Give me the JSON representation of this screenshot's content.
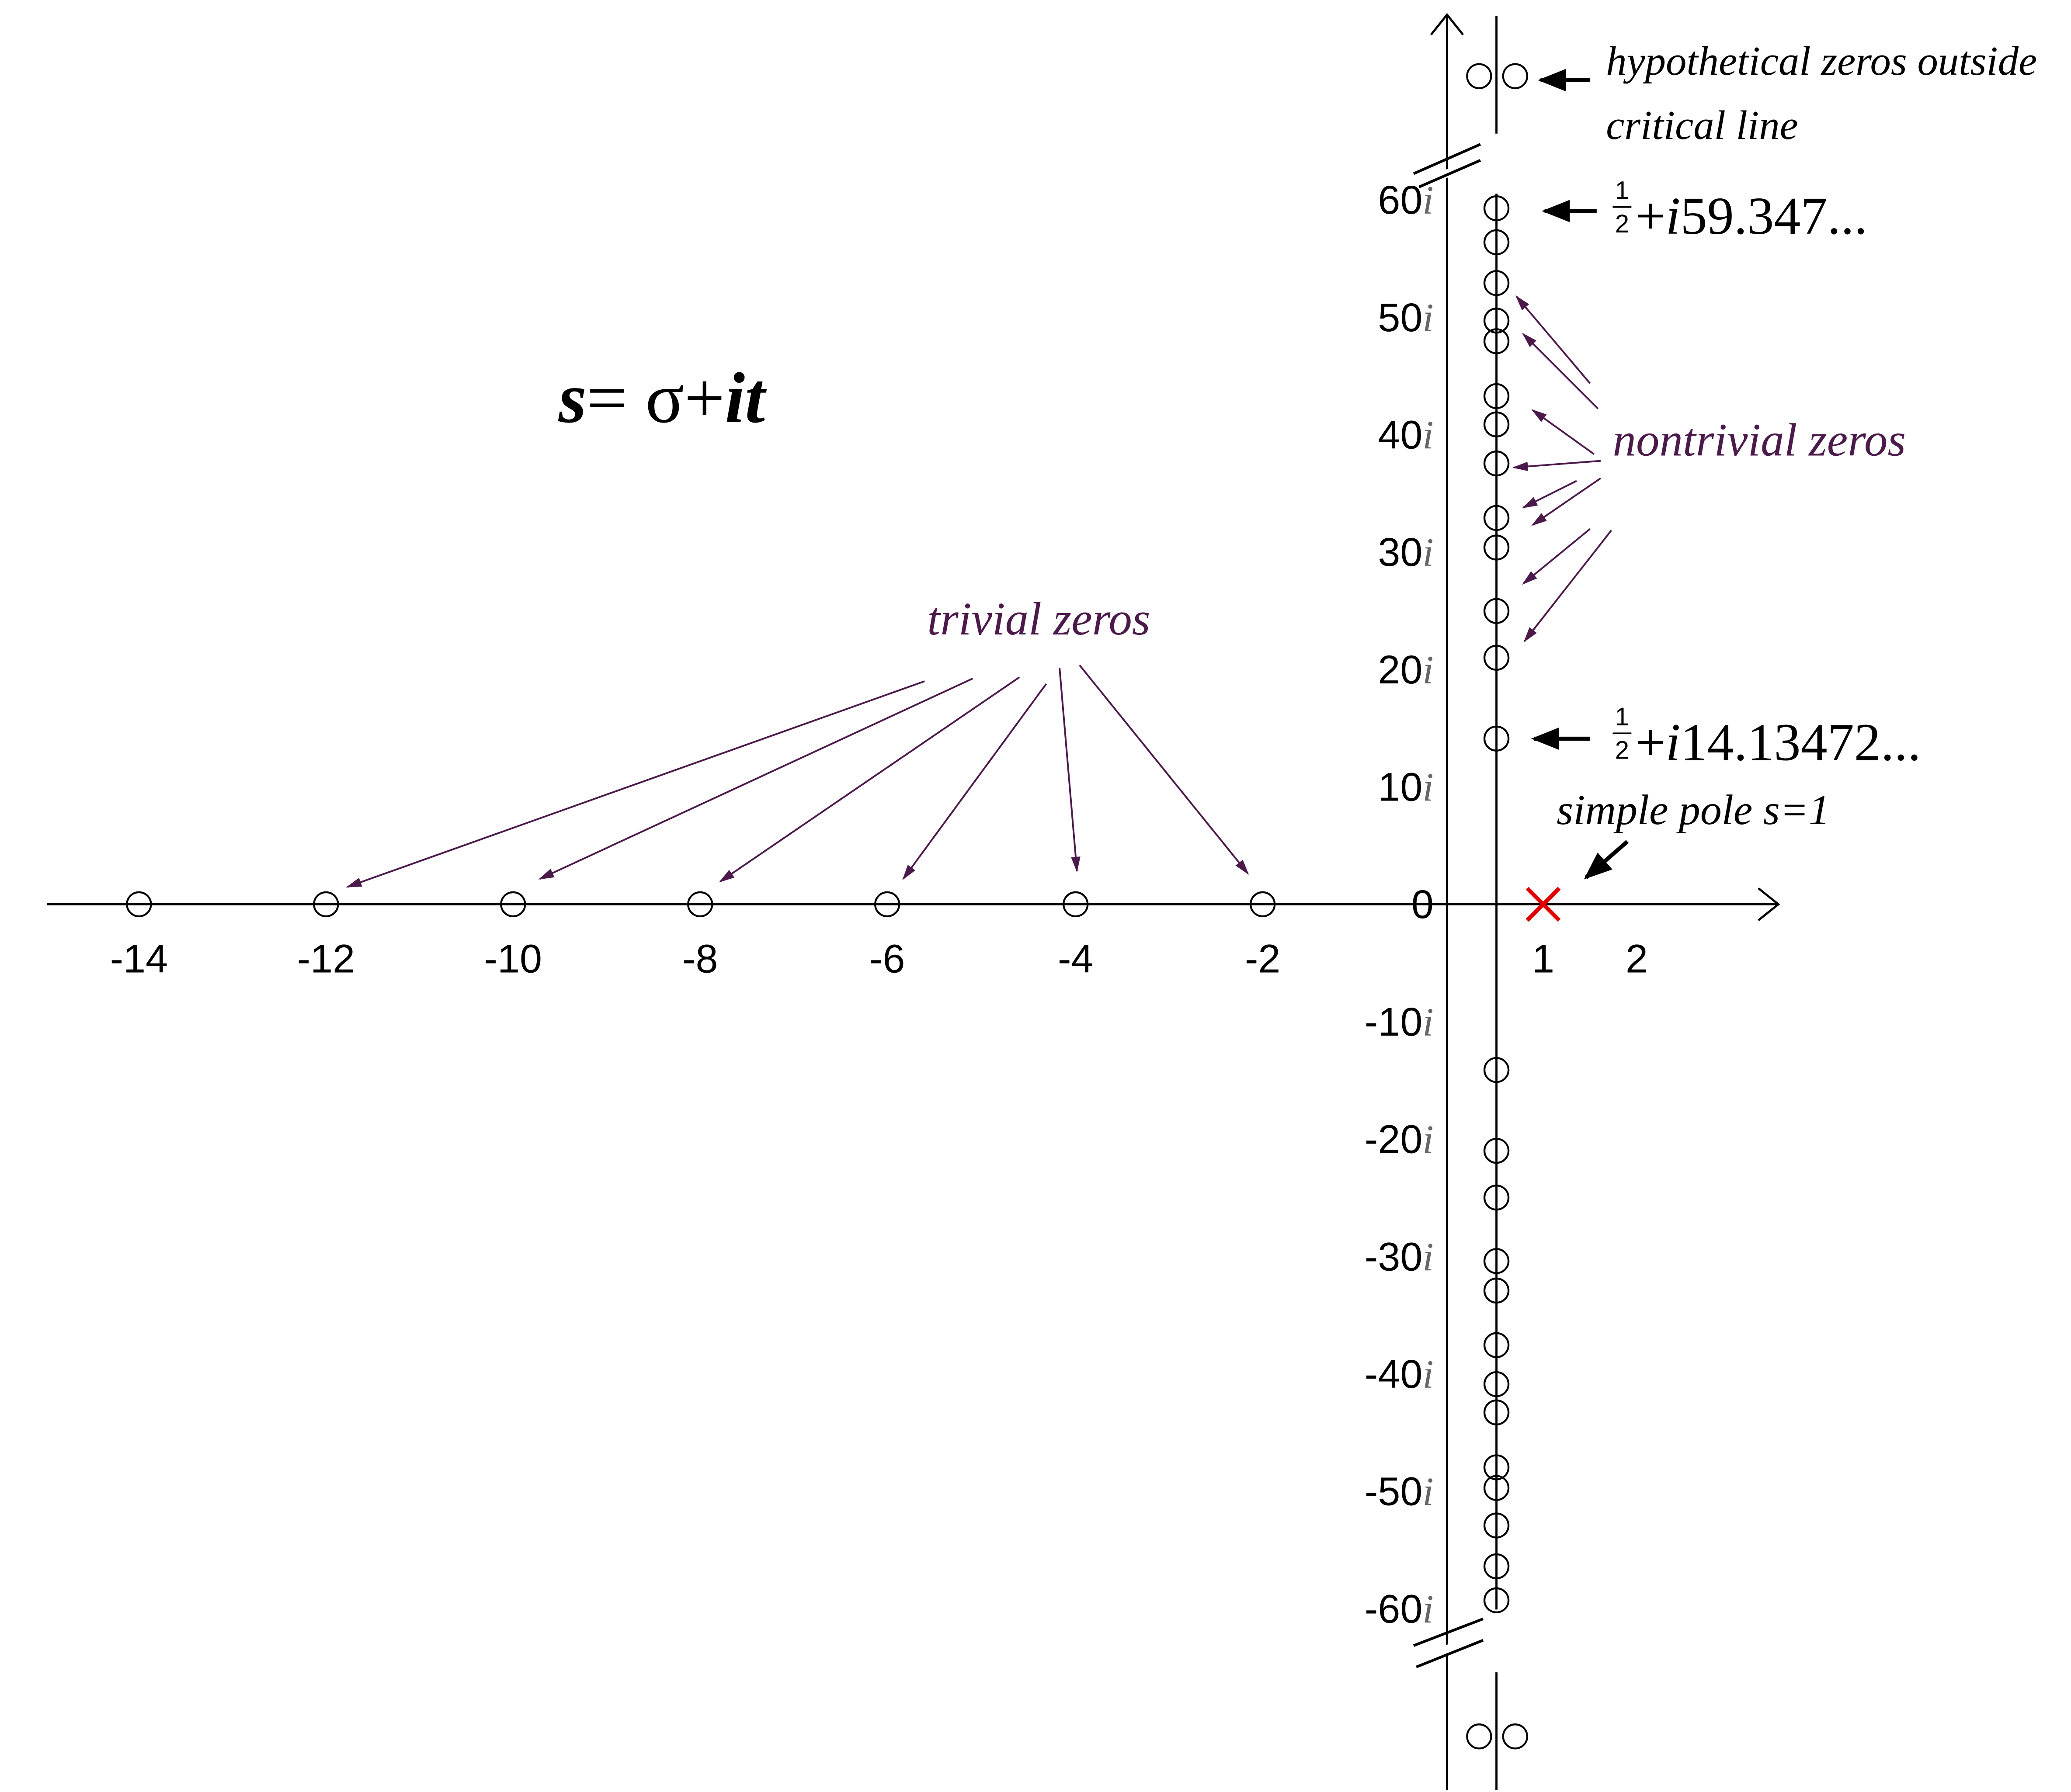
{
  "formula": {
    "variable": "s",
    "equals": "= ",
    "sigma": "σ",
    "plus": "+",
    "imaginary": "it"
  },
  "real_axis_labels": [
    "-14",
    "-12",
    "-10",
    "-8",
    "-6",
    "-4",
    "-2",
    "1",
    "2"
  ],
  "imaginary_axis_labels": [
    {
      "number": "60",
      "unit": "i"
    },
    {
      "number": "50",
      "unit": "i"
    },
    {
      "number": "40",
      "unit": "i"
    },
    {
      "number": "30",
      "unit": "i"
    },
    {
      "number": "20",
      "unit": "i"
    },
    {
      "number": "10",
      "unit": "i"
    },
    {
      "number": "0"
    },
    {
      "number": "-10",
      "unit": "i"
    },
    {
      "number": "-20",
      "unit": "i"
    },
    {
      "number": "-30",
      "unit": "i"
    },
    {
      "number": "-40",
      "unit": "i"
    },
    {
      "number": "-50",
      "unit": "i"
    },
    {
      "number": "-60",
      "unit": "i"
    }
  ],
  "annotations": {
    "hypothetical_zeros": [
      "hypothetical zeros outside",
      "critical line"
    ],
    "highest_zero": {
      "numerator": "1",
      "denominator": "2",
      "plus": "+",
      "unit": "i",
      "value": "59.347..."
    },
    "nontrivial_zeros": "nontrivial  zeros",
    "first_zero": {
      "numerator": "1",
      "denominator": "2",
      "plus": "+",
      "unit": "i",
      "value": "14.13472..."
    },
    "simple_pole": "simple pole s=1",
    "trivial_zeros": "trivial  zeros"
  }
}
